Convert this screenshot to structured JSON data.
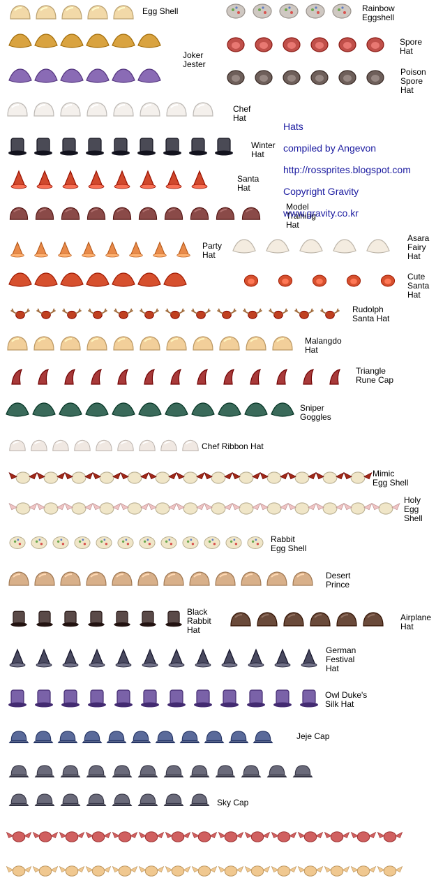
{
  "title": "Hats",
  "credits": [
    "Hats",
    "compiled by Angevon",
    "http://rossprites.blogspot.com",
    "Copyright Gravity",
    "www.gravity.co.kr"
  ],
  "labels": [
    "Egg Shell",
    "Rainbow\nEggshell",
    "Joker\nJester",
    "Spore\nHat",
    "Poison\nSpore\nHat",
    "Chef\nHat",
    "Winter\nHat",
    "Santa\nHat",
    "Model\nTraining\nHat",
    "Party\nHat",
    "Asara\nFairy\nHat",
    "Cute\nSanta\nHat",
    "Rudolph\nSanta Hat",
    "Malangdo\nHat",
    "Triangle\nRune Cap",
    "Sniper\nGoggles",
    "Chef  Ribbon  Hat",
    "Mimic\nEgg Shell",
    "Holy\nEgg\nShell",
    "Rabbit\nEgg Shell",
    "Desert\nPrince",
    "Black\nRabbit\nHat",
    "Airplane\nHat",
    "German\nFestival\nHat",
    "Owl Duke's\nSilk Hat",
    "Jeje Cap",
    "Sky Cap"
  ],
  "colors": {
    "background": "#ffffff",
    "credit_text": "#1a1aa0",
    "egg": "#f2d9a8",
    "rainbow_egg": "#cfc8c2",
    "jester_a": "#8a6bb5",
    "jester_b": "#d9a340",
    "spore": "#c0504a",
    "poison_spore": "#6e5f5a",
    "chef": "#f4f0ec",
    "winter": "#4a4a55",
    "santa": "#d0482c",
    "model": "#8a4a48",
    "party": "#e88a4a",
    "asara": "#f4ece0",
    "cute_santa": "#d6502e",
    "rudolph": "#c04020",
    "malangdo": "#f2cf9a",
    "rune": "#a83a3a",
    "goggles": "#3a6a5a",
    "ribbon": "#f0e8e2",
    "mimic_wing": "#a02a18",
    "holy_wing": "#f0c4c4",
    "rabbit_egg": "#f0e6c8",
    "desert": "#d8b08a",
    "black_rabbit": "#5a4a48",
    "airplane": "#6a4a3a",
    "german": "#4a4a60",
    "owl": "#7a62a8",
    "jeje": "#5a6a9a",
    "sky": "#6a6a7a",
    "red_wing": "#d06060",
    "gold_wing": "#f0c890"
  }
}
